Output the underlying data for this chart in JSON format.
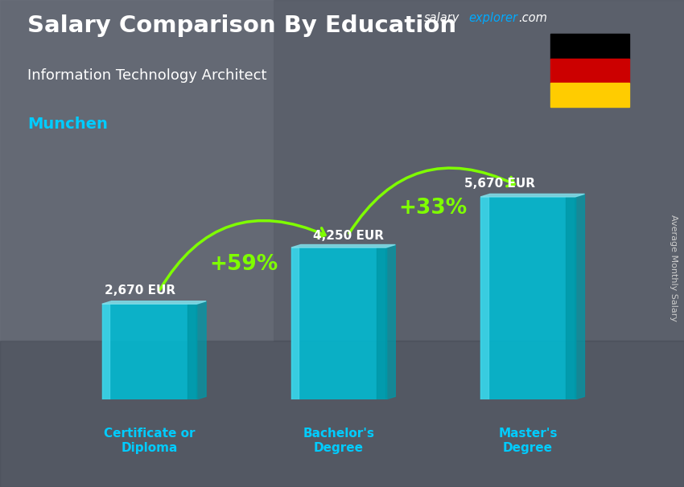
{
  "title_main": "Salary Comparison By Education",
  "subtitle_job": "Information Technology Architect",
  "subtitle_city": "Munchen",
  "ylabel": "Average Monthly Salary",
  "watermark_salary": "salary",
  "watermark_explorer": "explorer",
  "watermark_com": ".com",
  "categories": [
    "Certificate or\nDiploma",
    "Bachelor's\nDegree",
    "Master's\nDegree"
  ],
  "values": [
    2670,
    4250,
    5670
  ],
  "value_labels": [
    "2,670 EUR",
    "4,250 EUR",
    "5,670 EUR"
  ],
  "pct_labels": [
    "+59%",
    "+33%"
  ],
  "bar_color_main": "#00bcd4",
  "bar_color_light": "#4dd9ec",
  "bar_color_dark": "#0097a7",
  "bar_color_top": "#80deea",
  "bg_color": "#5a6070",
  "title_color": "#ffffff",
  "subtitle_color": "#ffffff",
  "city_color": "#00ccff",
  "pct_color": "#7fff00",
  "value_color": "#ffffff",
  "cat_color": "#00ccff",
  "arrow_color": "#7fff00",
  "watermark_color1": "#ffffff",
  "watermark_color2": "#00aaff",
  "ylabel_color": "#cccccc",
  "ylim_max": 7500,
  "bar_positions": [
    0,
    1,
    2
  ],
  "bar_width": 0.5
}
